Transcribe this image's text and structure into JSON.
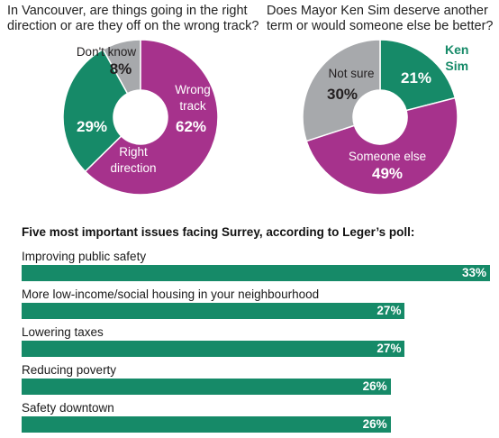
{
  "colors": {
    "green": "#168a68",
    "purple": "#a6328c",
    "gray": "#a7a9ac",
    "dark": "#231f20"
  },
  "chart_data": [
    {
      "type": "pie",
      "title": "In Vancouver, are things going in the right direction or are they off on the wrong track?",
      "slices": [
        {
          "label": "Don't know",
          "value": 8,
          "value_label": "8%",
          "color": "#a7a9ac"
        },
        {
          "label": "Wrong track",
          "value": 62,
          "value_label": "62%",
          "color": "#a6328c"
        },
        {
          "label": "Right direction",
          "value": 29,
          "value_label": "29%",
          "color": "#168a68"
        }
      ]
    },
    {
      "type": "pie",
      "title": "Does Mayor Ken Sim deserve another term or would someone else be better?",
      "slices": [
        {
          "label": "Ken Sim",
          "value": 21,
          "value_label": "21%",
          "color": "#168a68"
        },
        {
          "label": "Someone else",
          "value": 49,
          "value_label": "49%",
          "color": "#a6328c"
        },
        {
          "label": "Not sure",
          "value": 30,
          "value_label": "30%",
          "color": "#a7a9ac"
        }
      ]
    },
    {
      "type": "bar",
      "title": "Five most important issues facing Surrey, according to Leger’s poll:",
      "categories": [
        "Improving public safety",
        "More low-income/social housing in your neighbourhood",
        "Lowering taxes",
        "Reducing poverty",
        "Safety downtown"
      ],
      "values": [
        33,
        27,
        27,
        26,
        26
      ],
      "value_labels": [
        "33%",
        "27%",
        "27%",
        "26%",
        "26%"
      ],
      "color": "#168a68"
    }
  ]
}
